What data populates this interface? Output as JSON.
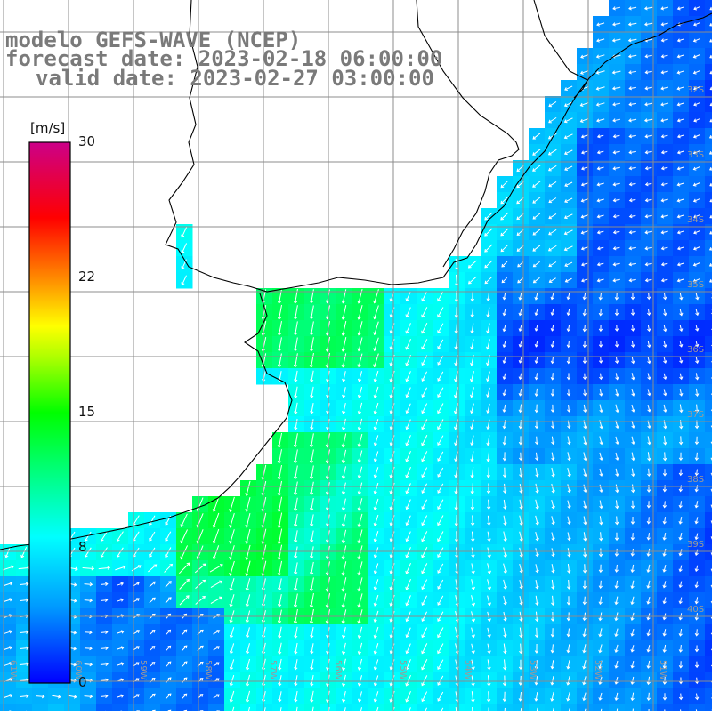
{
  "title": {
    "line1": "modelo GEFS-WAVE (NCEP)",
    "line2": "forecast date: 2023-02-18 06:00:00",
    "line3": "valid date: 2023-02-27 03:00:00"
  },
  "colorbar": {
    "unit": "[m/s]",
    "ticks": [
      "30",
      "22",
      "15",
      "8",
      "0"
    ],
    "tick_values": [
      30,
      22,
      15,
      8,
      0
    ],
    "range": [
      0,
      30
    ]
  },
  "latitude_labels": [
    "32S",
    "33S",
    "34S",
    "35S",
    "36S",
    "37S",
    "38S",
    "39S",
    "40S"
  ],
  "longitude_labels": [
    "61W",
    "60W",
    "59W",
    "58W",
    "57W",
    "56W",
    "55W",
    "54W",
    "53W",
    "52W",
    "51W"
  ],
  "map": {
    "variable": "wind speed and direction",
    "land_color": "#ffffff",
    "coastline_color": "#000000",
    "grid_color": "#8c8c8c"
  }
}
